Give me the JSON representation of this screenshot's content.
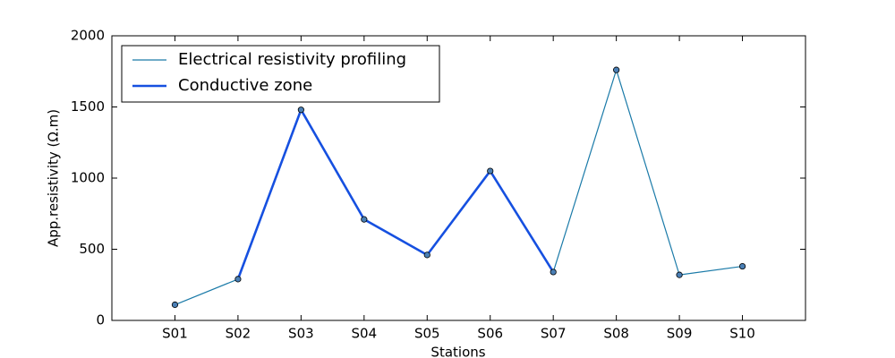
{
  "chart_data": {
    "type": "line",
    "categories": [
      "S01",
      "S02",
      "S03",
      "S04",
      "S05",
      "S06",
      "S07",
      "S08",
      "S09",
      "S10"
    ],
    "series": [
      {
        "name": "Electrical resistivity profiling",
        "color": "#1a7aa8",
        "values": [
          110,
          290,
          1480,
          710,
          460,
          1050,
          340,
          1760,
          320,
          380
        ]
      },
      {
        "name": "Conductive zone",
        "color": "#1650e0",
        "values": [
          null,
          290,
          1480,
          710,
          460,
          1050,
          340,
          null,
          null,
          null
        ]
      }
    ],
    "marker_color": "#4a7fb5",
    "xlabel": "Stations",
    "ylabel": "App.resistivity (Ω.m)",
    "ylim": [
      0,
      2000
    ],
    "yticks": [
      0,
      500,
      1000,
      1500,
      2000
    ],
    "legend": "upper left"
  }
}
